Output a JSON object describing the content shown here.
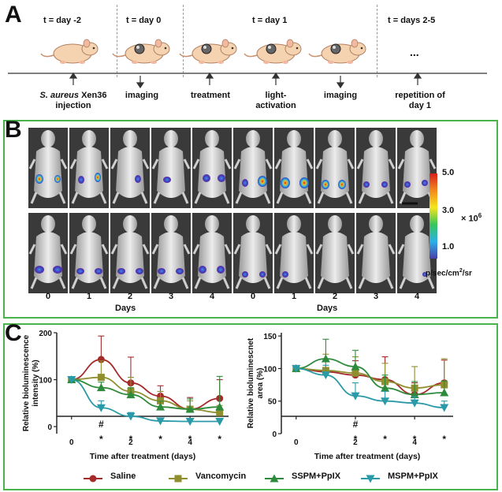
{
  "panel_a": {
    "letter": "A",
    "time_labels": [
      "t = day -2",
      "t = day 0",
      "t = day 1",
      "t = days 2-5"
    ],
    "steps": [
      {
        "label_italic": "S. aureus",
        "label_rest": " Xen36",
        "label_line2": "injection"
      },
      {
        "label": "imaging"
      },
      {
        "label": "treatment"
      },
      {
        "label": "light-",
        "label_line2": "activation"
      },
      {
        "label": "imaging"
      },
      {
        "label": "repetition of",
        "label_line2": "day 1"
      }
    ],
    "ellipsis": "..."
  },
  "panel_b": {
    "letter": "B",
    "days": [
      "0",
      "1",
      "2",
      "3",
      "4"
    ],
    "days_label": "Days",
    "scale_max": "5.0",
    "scale_mid": "3.0",
    "scale_min": "1.0",
    "scale_multiplier": "× 10",
    "scale_exponent": "6",
    "unit_label": "p/sec/cm",
    "unit_sup": "2",
    "unit_suffix": "/sr"
  },
  "panel_c": {
    "letter": "C",
    "legend": [
      {
        "name": "Saline",
        "color": "#a52a2a",
        "marker": "circle"
      },
      {
        "name": "Vancomycin",
        "color": "#8f8f30",
        "marker": "square"
      },
      {
        "name": "SSPM+PpIX",
        "color": "#2e8b3c",
        "marker": "triangle-up"
      },
      {
        "name": "MSPM+PpIX",
        "color": "#2a9aa8",
        "marker": "triangle-down"
      }
    ]
  },
  "chart_data": [
    {
      "type": "line",
      "title": "",
      "xlabel": "Time after treatment (days)",
      "ylabel_line1": "Relative bioluminescence",
      "ylabel_line2": "intensity (%)",
      "xlim": [
        -0.5,
        5.3
      ],
      "ylim": [
        -15,
        200
      ],
      "xticks": [
        "0",
        "2",
        "4"
      ],
      "yticks": [
        "0",
        "100",
        "200"
      ],
      "x": [
        0,
        1,
        2,
        3,
        4,
        5
      ],
      "series": [
        {
          "name": "Saline",
          "values": [
            100,
            143,
            93,
            65,
            37,
            60
          ],
          "err": [
            0,
            50,
            55,
            22,
            25,
            40
          ]
        },
        {
          "name": "Vancomycin",
          "values": [
            100,
            105,
            75,
            55,
            37,
            30
          ],
          "err": [
            0,
            35,
            30,
            20,
            18,
            15
          ]
        },
        {
          "name": "SSPM+PpIX",
          "values": [
            100,
            83,
            68,
            42,
            37,
            42
          ],
          "err": [
            0,
            12,
            15,
            12,
            22,
            65
          ]
        },
        {
          "name": "MSPM+PpIX",
          "values": [
            100,
            40,
            22,
            12,
            11,
            11
          ],
          "err": [
            0,
            15,
            8,
            5,
            4,
            5
          ]
        }
      ],
      "annotations": [
        {
          "x": 1,
          "symbol": "#",
          "row": "upper"
        },
        {
          "x": 1,
          "symbol": "*",
          "row": "lower"
        },
        {
          "x": 2,
          "symbol": "*",
          "row": "lower"
        },
        {
          "x": 3,
          "symbol": "*",
          "row": "lower"
        },
        {
          "x": 4,
          "symbol": "*",
          "row": "lower"
        },
        {
          "x": 5,
          "symbol": "*",
          "row": "lower"
        }
      ]
    },
    {
      "type": "line",
      "title": "",
      "xlabel": "Time after treatment (days)",
      "ylabel_line1": "Relative bioluminescnet",
      "ylabel_line2": "area (%)",
      "xlim": [
        -0.5,
        5.3
      ],
      "ylim": [
        0,
        155
      ],
      "xticks": [
        "0",
        "2",
        "4"
      ],
      "yticks": [
        "0",
        "50",
        "100",
        "150"
      ],
      "x": [
        0,
        1,
        2,
        3,
        4,
        5
      ],
      "series": [
        {
          "name": "Saline",
          "values": [
            100,
            95,
            90,
            83,
            60,
            78
          ],
          "err": [
            0,
            20,
            22,
            35,
            18,
            35
          ]
        },
        {
          "name": "Vancomycin",
          "values": [
            100,
            97,
            93,
            80,
            70,
            75
          ],
          "err": [
            0,
            25,
            25,
            28,
            33,
            40
          ]
        },
        {
          "name": "SSPM+PpIX",
          "values": [
            100,
            115,
            103,
            70,
            60,
            63
          ],
          "err": [
            0,
            30,
            25,
            20,
            20,
            18
          ]
        },
        {
          "name": "MSPM+PpIX",
          "values": [
            100,
            90,
            58,
            50,
            47,
            40
          ],
          "err": [
            0,
            15,
            20,
            15,
            10,
            10
          ]
        }
      ],
      "annotations": [
        {
          "x": 2,
          "symbol": "#",
          "row": "upper"
        },
        {
          "x": 2,
          "symbol": "*",
          "row": "lower"
        },
        {
          "x": 3,
          "symbol": "*",
          "row": "lower"
        },
        {
          "x": 4,
          "symbol": "*",
          "row": "lower"
        },
        {
          "x": 5,
          "symbol": "*",
          "row": "lower"
        }
      ]
    }
  ]
}
